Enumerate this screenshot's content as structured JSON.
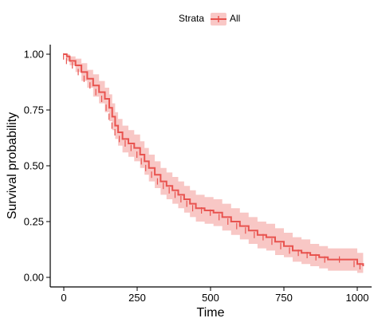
{
  "legend": {
    "title": "Strata",
    "entries": [
      "All"
    ],
    "position": "top"
  },
  "colors": {
    "line": "#e8534f",
    "band": "#f6b4b2",
    "legend_box": "#f9c8c6"
  },
  "chart_data": {
    "type": "line",
    "xlabel": "Time",
    "ylabel": "Survival probability",
    "xlim": [
      0,
      1020
    ],
    "ylim": [
      0,
      1.0
    ],
    "x_ticks": [
      0,
      250,
      500,
      750,
      1000
    ],
    "x_tick_labels": [
      "0",
      "250",
      "500",
      "750",
      "1000"
    ],
    "y_ticks": [
      0,
      0.25,
      0.5,
      0.75,
      1.0
    ],
    "y_tick_labels": [
      "0.00",
      "0.25",
      "0.50",
      "0.75",
      "1.00"
    ],
    "grid": false,
    "step": true,
    "series": [
      {
        "name": "All",
        "x": [
          0,
          10,
          20,
          40,
          60,
          80,
          100,
          120,
          140,
          155,
          165,
          175,
          185,
          200,
          220,
          240,
          260,
          275,
          290,
          310,
          330,
          350,
          370,
          390,
          410,
          430,
          450,
          480,
          510,
          540,
          570,
          600,
          630,
          660,
          690,
          720,
          750,
          780,
          810,
          840,
          870,
          900,
          950,
          1000,
          1020
        ],
        "y": [
          1.0,
          0.99,
          0.97,
          0.95,
          0.92,
          0.89,
          0.86,
          0.83,
          0.8,
          0.76,
          0.72,
          0.68,
          0.65,
          0.62,
          0.6,
          0.58,
          0.55,
          0.52,
          0.49,
          0.46,
          0.43,
          0.41,
          0.39,
          0.37,
          0.35,
          0.33,
          0.31,
          0.3,
          0.29,
          0.27,
          0.25,
          0.23,
          0.21,
          0.19,
          0.18,
          0.16,
          0.14,
          0.12,
          0.11,
          0.1,
          0.09,
          0.08,
          0.08,
          0.06,
          0.05
        ],
        "lower": [
          1.0,
          0.97,
          0.95,
          0.92,
          0.88,
          0.85,
          0.81,
          0.78,
          0.74,
          0.7,
          0.66,
          0.62,
          0.59,
          0.56,
          0.54,
          0.52,
          0.49,
          0.46,
          0.43,
          0.4,
          0.37,
          0.35,
          0.33,
          0.31,
          0.29,
          0.27,
          0.25,
          0.24,
          0.23,
          0.21,
          0.19,
          0.17,
          0.15,
          0.13,
          0.12,
          0.1,
          0.09,
          0.07,
          0.06,
          0.05,
          0.04,
          0.03,
          0.03,
          0.02,
          0.02
        ],
        "upper": [
          1.0,
          1.0,
          0.99,
          0.98,
          0.96,
          0.93,
          0.91,
          0.88,
          0.85,
          0.82,
          0.78,
          0.74,
          0.71,
          0.68,
          0.66,
          0.64,
          0.61,
          0.58,
          0.55,
          0.52,
          0.49,
          0.47,
          0.45,
          0.43,
          0.41,
          0.39,
          0.37,
          0.36,
          0.35,
          0.33,
          0.31,
          0.29,
          0.27,
          0.25,
          0.24,
          0.22,
          0.2,
          0.18,
          0.17,
          0.15,
          0.14,
          0.13,
          0.13,
          0.11,
          0.1
        ]
      }
    ]
  }
}
